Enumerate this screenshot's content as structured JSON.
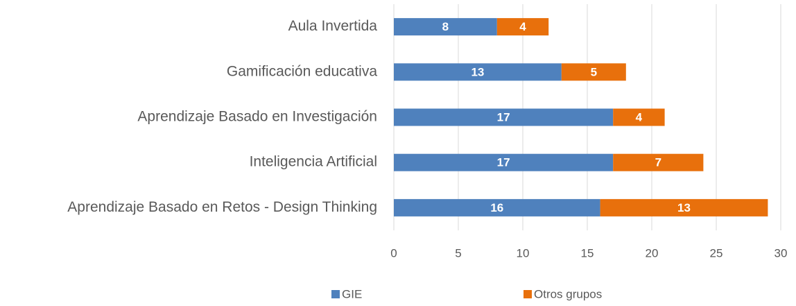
{
  "chart_data": {
    "type": "bar",
    "orientation": "horizontal",
    "stacked": true,
    "categories": [
      "Aula Invertida",
      "Gamificación educativa",
      "Aprendizaje Basado en Investigación",
      "Inteligencia Artificial",
      "Aprendizaje Basado en Retos - Design Thinking"
    ],
    "series": [
      {
        "name": "GIE",
        "color": "#4f81bd",
        "values": [
          8,
          13,
          17,
          17,
          16
        ]
      },
      {
        "name": "Otros grupos",
        "color": "#e8700c",
        "values": [
          4,
          5,
          4,
          7,
          13
        ]
      }
    ],
    "xlim": [
      0,
      30
    ],
    "xticks": [
      0,
      5,
      10,
      15,
      20,
      25,
      30
    ],
    "grid": true,
    "legend": "bottom"
  }
}
